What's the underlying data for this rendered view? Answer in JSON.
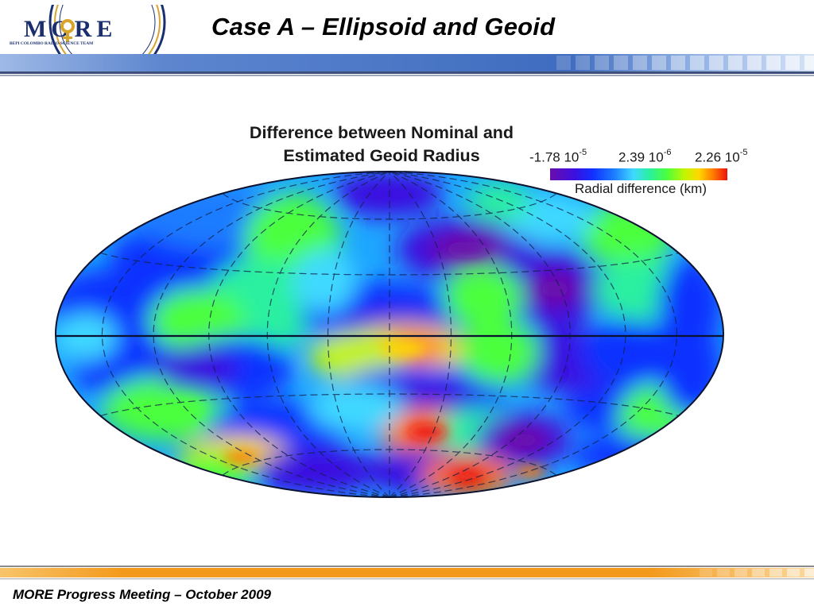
{
  "slide": {
    "title": "Case A – Ellipsoid and Geoid",
    "footer": "MORE Progress Meeting – October 2009"
  },
  "logo": {
    "name": "MORE",
    "tagline": "BEPI COLOMBO RADIO-SCIENCE TEAM"
  },
  "figure": {
    "title_line1": "Difference between Nominal and",
    "title_line2": "Estimated Geoid Radius",
    "colorbar": {
      "min_label": "-1.78 10",
      "min_exp": "-5",
      "mid_label": "2.39 10",
      "mid_exp": "-6",
      "max_label": "2.26 10",
      "max_exp": "-5",
      "label": "Radial difference (km)",
      "colors": [
        "#6a0dad",
        "#3b10e0",
        "#1030ff",
        "#1c7cff",
        "#3fd9ff",
        "#29f0a0",
        "#4cff3c",
        "#c4f500",
        "#ffd700",
        "#ff7a00",
        "#ee1111"
      ]
    },
    "projection": "hammer-aitoff"
  },
  "colors": {
    "header_bar": "#4f78c4",
    "footer_bar": "#f39a1c",
    "logo_ring": "#1b2f6e",
    "logo_gold": "#d8a52c"
  }
}
